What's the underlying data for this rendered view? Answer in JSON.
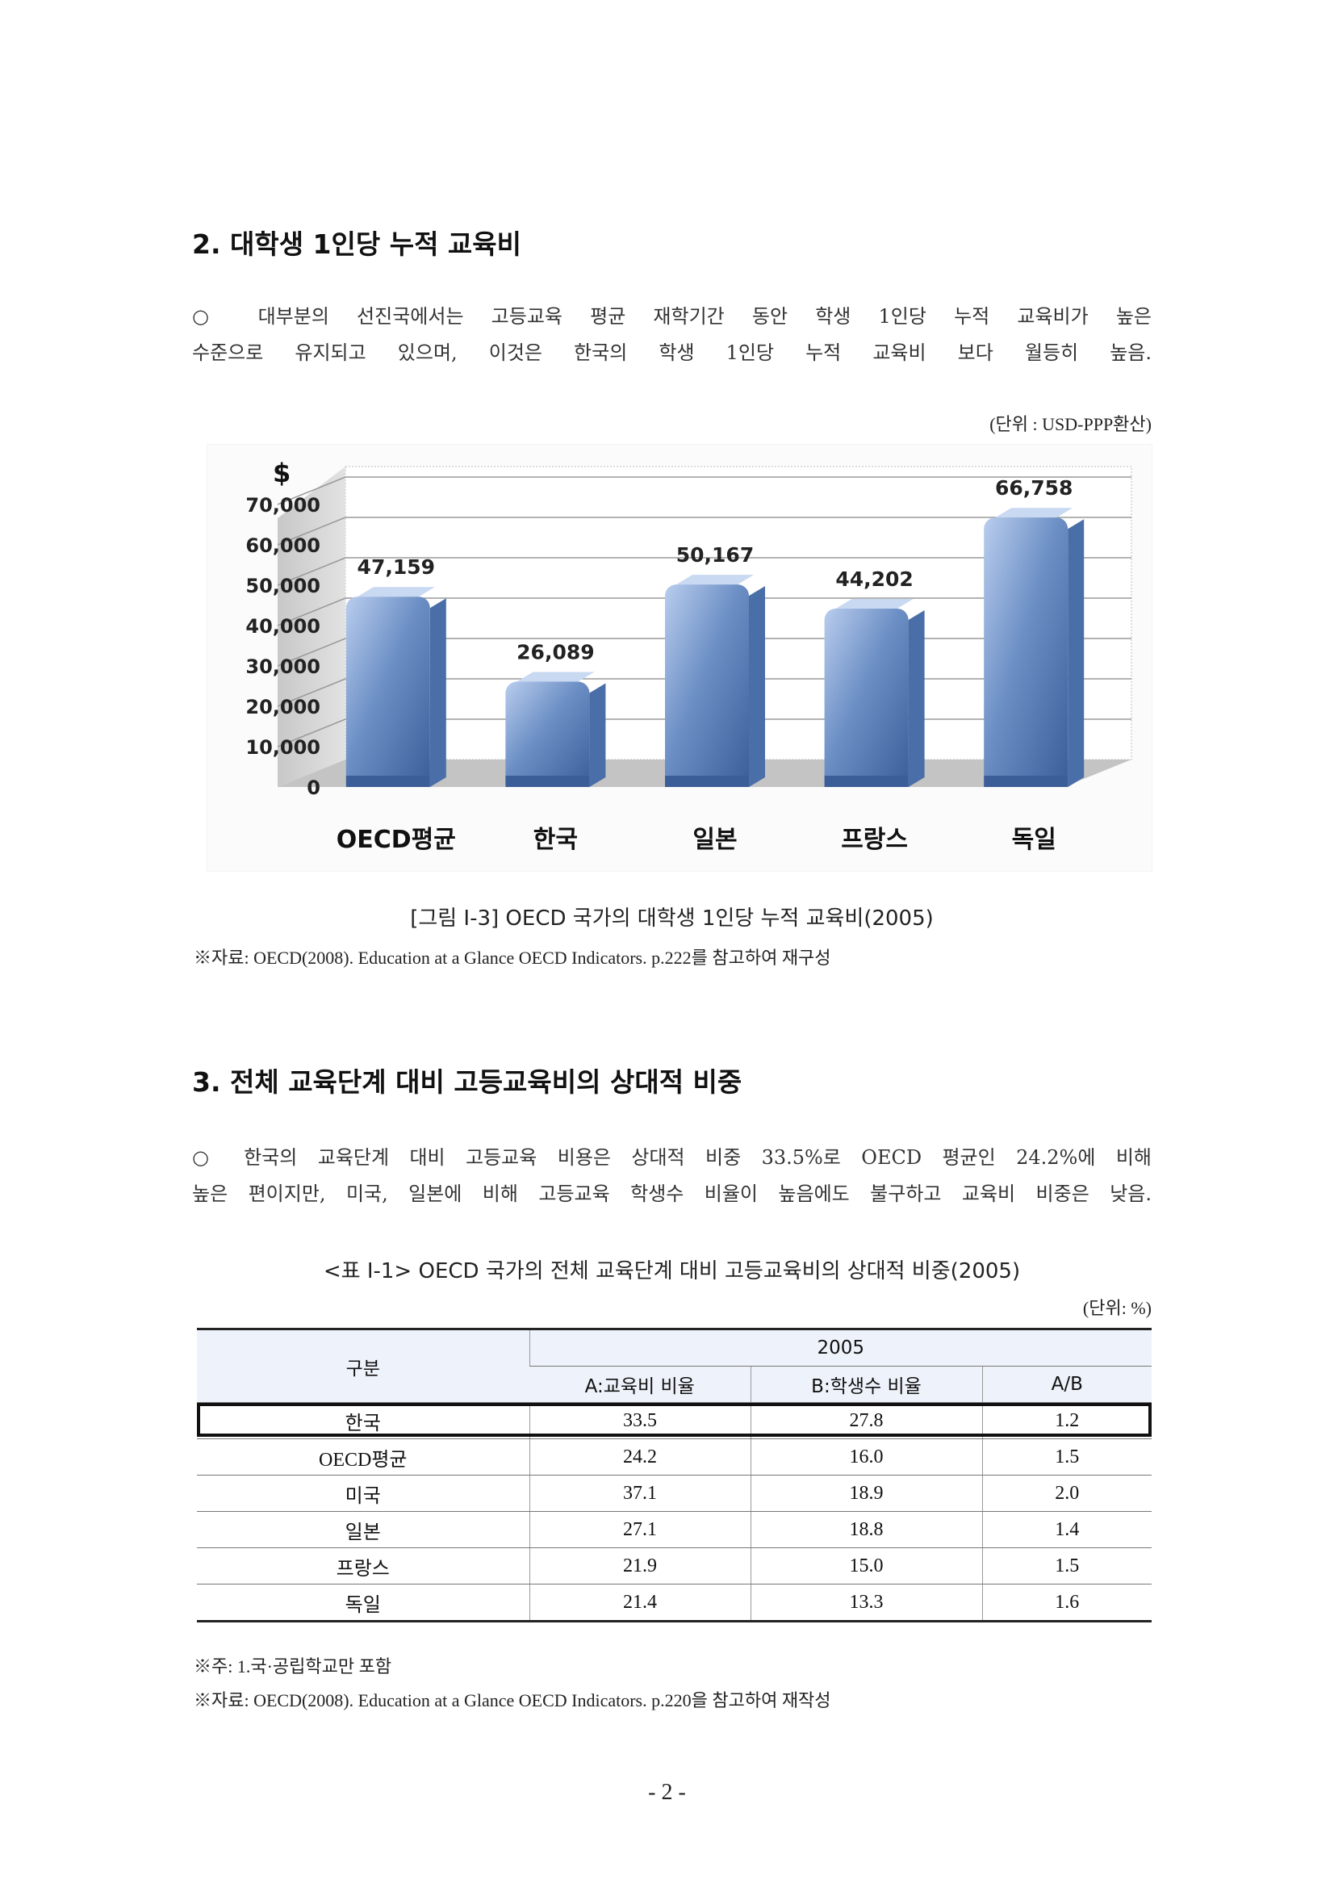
{
  "section2": {
    "heading": "2. 대학생 1인당 누적 교육비",
    "paragraph_lines": [
      "○ 대부분의 선진국에서는 고등교육 평균 재학기간 동안 학생 1인당 누적 교육비가 높은",
      "수준으로 유지되고 있으며, 이것은 한국의 학생 1인당 누적 교육비 보다 월등히 높음."
    ],
    "unit_note": "(단위 : USD-PPP환산)"
  },
  "chart_data": {
    "type": "bar",
    "categories": [
      "OECD평균",
      "한국",
      "일본",
      "프랑스",
      "독일"
    ],
    "values": [
      47159,
      26089,
      50167,
      44202,
      66758
    ],
    "value_labels": [
      "47,159",
      "26,089",
      "50,167",
      "44,202",
      "66,758"
    ],
    "y_unit_symbol": "$",
    "yticks": [
      "0",
      "10,000",
      "20,000",
      "30,000",
      "40,000",
      "50,000",
      "60,000",
      "70,000"
    ],
    "ylim": [
      0,
      70000
    ],
    "grid": true,
    "colors": {
      "bar_light": "#b9cdee",
      "bar_mid": "#6c8fc5",
      "bar_dark": "#3b5e99",
      "bar_side": "#4a6ea8",
      "bar_top": "#c9d9f2",
      "wall": "#d3d3d3",
      "floor": "#c4c4c4"
    }
  },
  "figure": {
    "caption": "[그림 Ⅰ-3] OECD 국가의 대학생 1인당 누적 교육비(2005)",
    "source": "※자료: OECD(2008). Education at a Glance OECD Indicators. p.222를 참고하여 재구성"
  },
  "section3": {
    "heading": "3. 전체 교육단계 대비 고등교육비의 상대적 비중",
    "paragraph_lines": [
      "○ 한국의 교육단계 대비 고등교육 비용은 상대적 비중 33.5%로 OECD 평균인 24.2%에 비해",
      "높은 편이지만, 미국, 일본에 비해 고등교육 학생수 비율이 높음에도 불구하고 교육비 비중은 낮음."
    ]
  },
  "table": {
    "caption": "<표 Ⅰ-1> OECD 국가의 전체 교육단계 대비 고등교육비의 상대적 비중(2005)",
    "unit_note": "(단위: %)",
    "header_group_label": "구분",
    "header_year": "2005",
    "columns": [
      "A:교육비 비율",
      "B:학생수 비율",
      "A/B"
    ],
    "rows": [
      [
        "한국",
        "33.5",
        "27.8",
        "1.2"
      ],
      [
        "OECD평균",
        "24.2",
        "16.0",
        "1.5"
      ],
      [
        "미국",
        "37.1",
        "18.9",
        "2.0"
      ],
      [
        "일본",
        "27.1",
        "18.8",
        "1.4"
      ],
      [
        "프랑스",
        "21.9",
        "15.0",
        "1.5"
      ],
      [
        "독일",
        "21.4",
        "13.3",
        "1.6"
      ]
    ],
    "note": "※주: 1.국·공립학교만 포함",
    "source": "※자료: OECD(2008). Education at a Glance OECD Indicators. p.220을 참고하여 재작성"
  },
  "page_number": "- 2 -"
}
